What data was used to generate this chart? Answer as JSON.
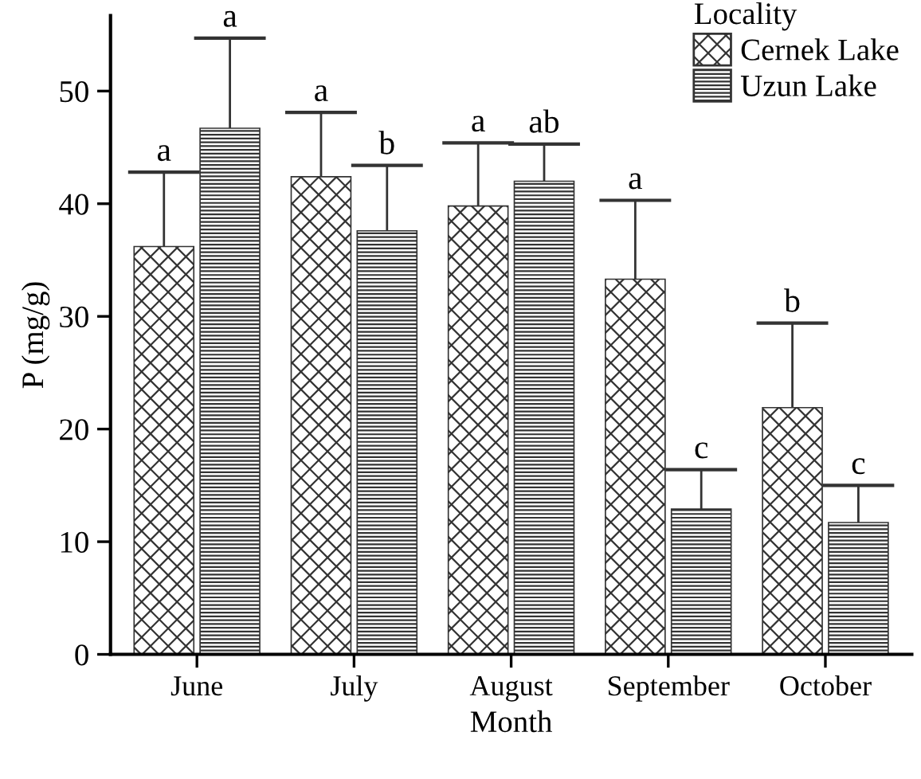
{
  "chart_data": {
    "type": "bar",
    "xlabel": "Month",
    "ylabel": "P (mg/g)",
    "legend_title": "Locality",
    "legend": "top right",
    "grid": false,
    "categories": [
      "June",
      "July",
      "August",
      "September",
      "October"
    ],
    "ylim": [
      0,
      56.7
    ],
    "yticks": [
      0,
      10,
      20,
      30,
      40,
      50
    ],
    "series": [
      {
        "name": "Cernek Lake",
        "color": "#333333",
        "values": [
          36.2,
          42.4,
          39.8,
          33.3,
          21.9
        ],
        "errors": [
          [
            36.2,
            42.8
          ],
          [
            42.4,
            48.1
          ],
          [
            39.8,
            45.4
          ],
          [
            33.3,
            40.3
          ],
          [
            21.9,
            29.4
          ]
        ]
      },
      {
        "name": "Uzun Lake",
        "color": "#333333",
        "values": [
          46.7,
          37.6,
          42.0,
          12.9,
          11.7
        ],
        "errors": [
          [
            46.7,
            54.7
          ],
          [
            37.6,
            43.4
          ],
          [
            42.0,
            45.3
          ],
          [
            12.9,
            16.4
          ],
          [
            11.7,
            15.0
          ]
        ]
      }
    ],
    "annotations": [
      "a",
      "a",
      "a",
      "b",
      "a",
      "ab",
      "a",
      "c",
      "b",
      "c"
    ]
  }
}
